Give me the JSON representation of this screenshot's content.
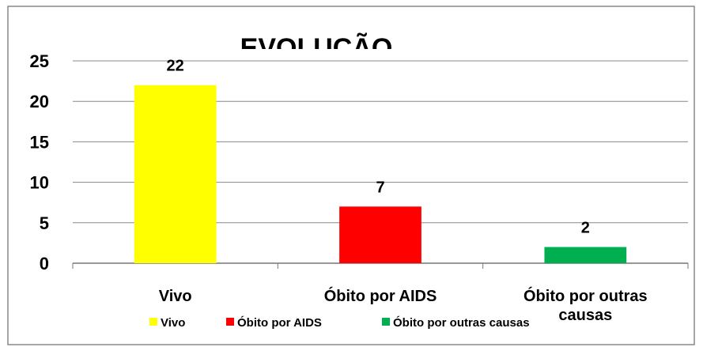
{
  "chart_data": {
    "type": "bar",
    "title": "EVOLUÇÃO",
    "categories": [
      "Vivo",
      "Óbito por AIDS",
      "Óbito por outras causas"
    ],
    "values": [
      22,
      7,
      2
    ],
    "colors": [
      "#ffff00",
      "#ff0000",
      "#00b050"
    ],
    "ylim": [
      0,
      25
    ],
    "yticks": [
      0,
      5,
      10,
      15,
      20,
      25
    ],
    "grid": true,
    "legend": "bottom"
  }
}
